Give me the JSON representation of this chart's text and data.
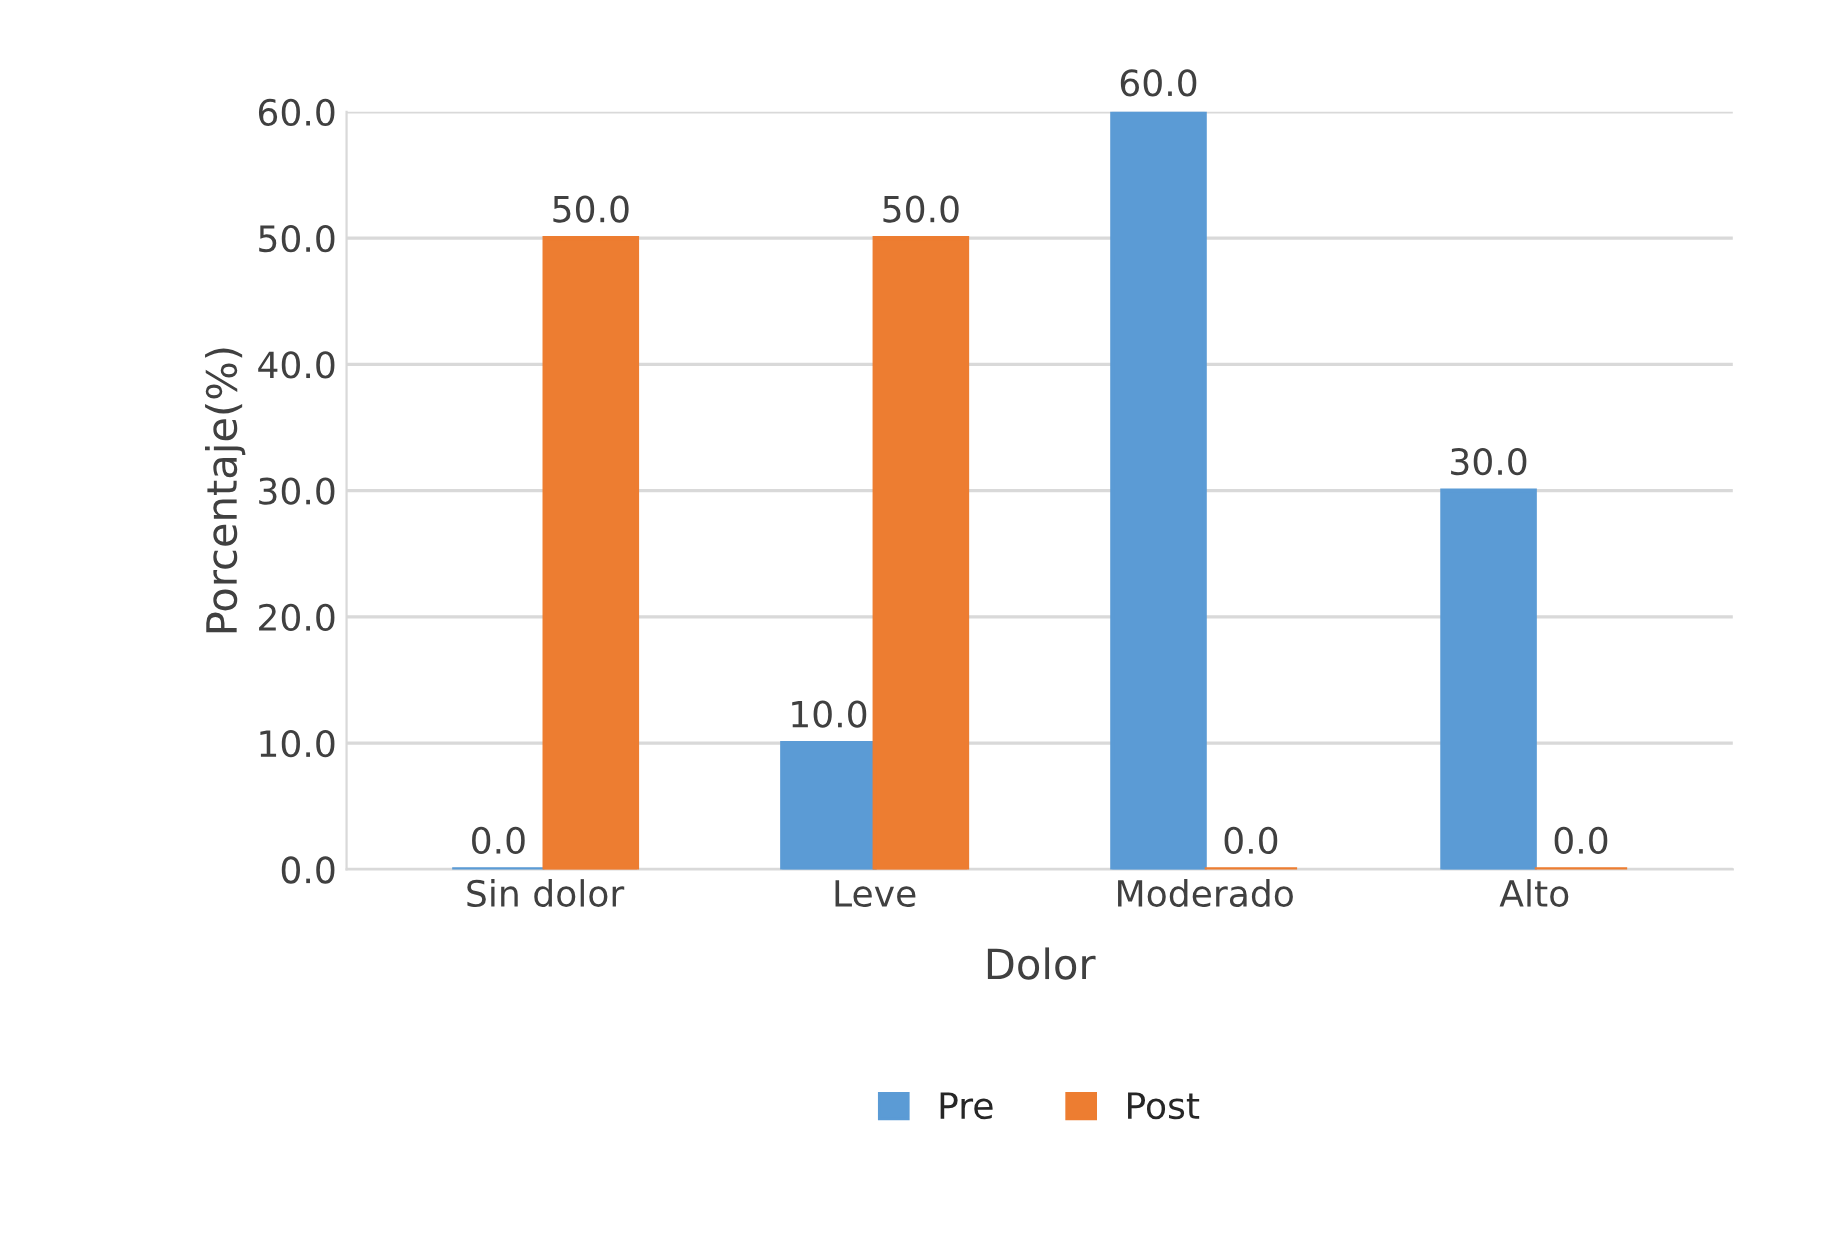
{
  "chart_data": {
    "type": "bar",
    "xlabel": "Dolor",
    "ylabel": "Porcentaje(%)",
    "categories": [
      "Sin dolor",
      "Leve",
      "Moderado",
      "Alto"
    ],
    "series": [
      {
        "name": "Pre",
        "color": "#5b9bd5",
        "values": [
          0,
          10,
          60,
          30
        ],
        "value_labels": [
          "0.0",
          "10.0",
          "60.0",
          "30.0"
        ]
      },
      {
        "name": "Post",
        "color": "#ed7d31",
        "values": [
          50,
          50,
          0,
          0
        ],
        "value_labels": [
          "50.0",
          "50.0",
          "0.0",
          "0.0"
        ]
      }
    ],
    "ylim": [
      0,
      60
    ],
    "yticks": [
      {
        "value": 0,
        "label": "0.0"
      },
      {
        "value": 10,
        "label": "10.0"
      },
      {
        "value": 20,
        "label": "20.0"
      },
      {
        "value": 30,
        "label": "30.0"
      },
      {
        "value": 40,
        "label": "40.0"
      },
      {
        "value": 50,
        "label": "50.0"
      },
      {
        "value": 60,
        "label": "60.0"
      }
    ],
    "grid": "y",
    "legend": "bottom"
  }
}
